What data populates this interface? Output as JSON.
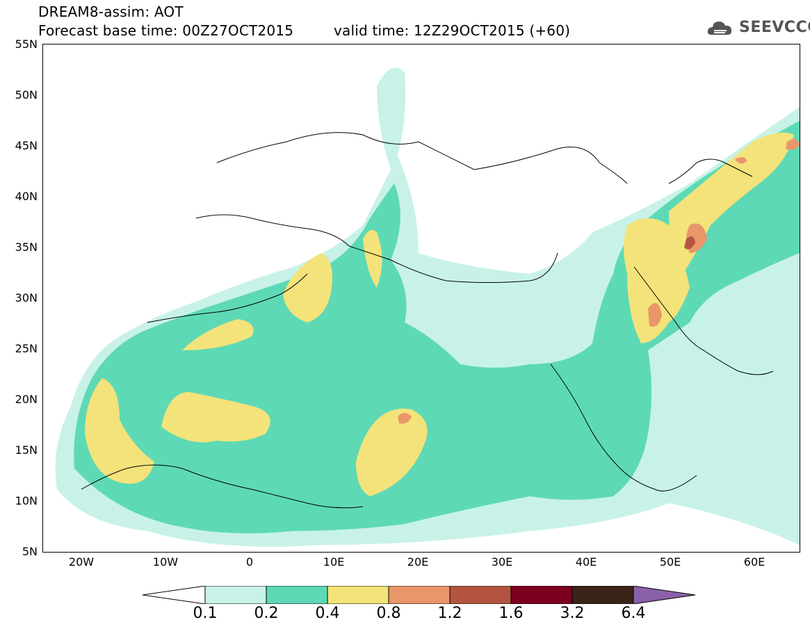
{
  "header": {
    "line1": "DREAM8-assim: AOT",
    "line2": "Forecast base time: 00Z27OCT2015",
    "line3": "valid time: 12Z29OCT2015 (+60)"
  },
  "logo": {
    "text": "SEEVCCC",
    "icon": "cloud-icon",
    "color": "#555555"
  },
  "axes": {
    "lat_labels": [
      "55N",
      "50N",
      "45N",
      "40N",
      "35N",
      "30N",
      "25N",
      "20N",
      "15N",
      "10N",
      "5N"
    ],
    "lon_labels": [
      "20W",
      "10W",
      "0",
      "10E",
      "20E",
      "30E",
      "40E",
      "50E",
      "60E"
    ],
    "lat_range": [
      5,
      55
    ],
    "lon_range": [
      -25,
      65
    ]
  },
  "colorbar": {
    "ticks": [
      "0.1",
      "0.2",
      "0.4",
      "0.8",
      "1.2",
      "1.6",
      "3.2",
      "6.4"
    ],
    "colors": [
      "#ffffff",
      "#c8f2e8",
      "#5ed9b5",
      "#f3e37a",
      "#e8966a",
      "#b45440",
      "#7d0020",
      "#3a2418",
      "#8a60a8"
    ]
  }
}
